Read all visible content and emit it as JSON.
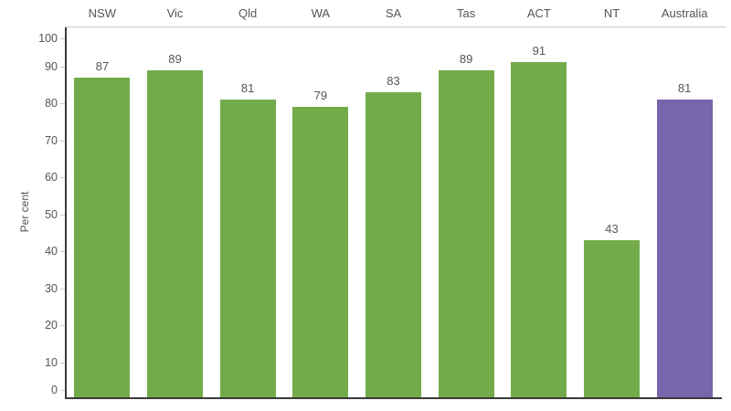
{
  "chart_data": {
    "type": "bar",
    "categories": [
      "NSW",
      "Vic",
      "Qld",
      "WA",
      "SA",
      "Tas",
      "ACT",
      "NT",
      "Australia"
    ],
    "values": [
      87,
      89,
      81,
      79,
      83,
      89,
      91,
      43,
      81
    ],
    "value_labels": [
      "87",
      "89",
      "81",
      "79",
      "83",
      "89",
      "91",
      "43",
      "81"
    ],
    "highlight_category": "Australia",
    "title": "",
    "xlabel": "",
    "ylabel": "Per cent",
    "ylim": [
      0,
      100
    ],
    "yticks": [
      0,
      10,
      20,
      30,
      40,
      50,
      60,
      70,
      80,
      90,
      100
    ],
    "grid": false,
    "legend": false,
    "bar_labels_shown": true
  },
  "colors": {
    "bar_default": "#72ac4a",
    "bar_highlight": "#7766ab",
    "text": "#555555",
    "axis_line": "#3a3a3a",
    "divider_line": "#c9c9c9",
    "tick_mark": "#c9c9c9",
    "background": "#ffffff"
  }
}
